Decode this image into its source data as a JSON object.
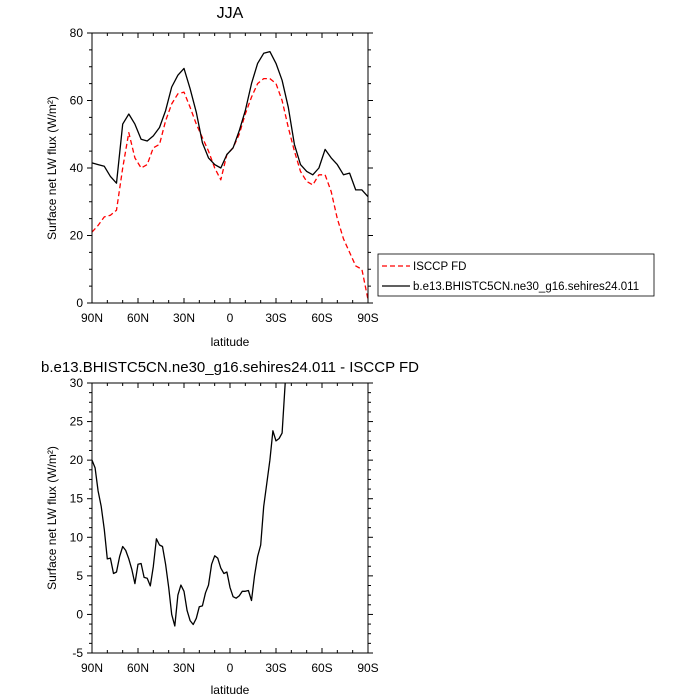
{
  "chart_data": [
    {
      "type": "line",
      "title": "JJA",
      "xlabel": "latitude",
      "ylabel": "Surface net LW flux (W/m²)",
      "xlim": [
        90,
        -90
      ],
      "ylim": [
        0,
        80
      ],
      "xticks": [
        {
          "value": 90,
          "label": "90N"
        },
        {
          "value": 60,
          "label": "60N"
        },
        {
          "value": 30,
          "label": "30N"
        },
        {
          "value": 0,
          "label": "0"
        },
        {
          "value": -30,
          "label": "30S"
        },
        {
          "value": -60,
          "label": "60S"
        },
        {
          "value": -90,
          "label": "90S"
        }
      ],
      "yticks": [
        0,
        20,
        40,
        60,
        80
      ],
      "grid": false,
      "legend_position": "right",
      "series": [
        {
          "name": "ISCCP FD",
          "color": "#ff0000",
          "style": "dashed",
          "points": [
            [
              90,
              21
            ],
            [
              86,
              23
            ],
            [
              82,
              25.5
            ],
            [
              78,
              26
            ],
            [
              74,
              27.5
            ],
            [
              70,
              40
            ],
            [
              66,
              50.5
            ],
            [
              62,
              43
            ],
            [
              58,
              40
            ],
            [
              54,
              41
            ],
            [
              50,
              46
            ],
            [
              46,
              47
            ],
            [
              42,
              54
            ],
            [
              38,
              59
            ],
            [
              34,
              62
            ],
            [
              30,
              62.5
            ],
            [
              26,
              58
            ],
            [
              22,
              53
            ],
            [
              18,
              49
            ],
            [
              14,
              45
            ],
            [
              10,
              40
            ],
            [
              6,
              36.5
            ],
            [
              2,
              44
            ],
            [
              -2,
              46
            ],
            [
              -6,
              50
            ],
            [
              -10,
              56
            ],
            [
              -14,
              61
            ],
            [
              -18,
              65
            ],
            [
              -22,
              66.5
            ],
            [
              -26,
              66.5
            ],
            [
              -30,
              65
            ],
            [
              -34,
              60
            ],
            [
              -38,
              52
            ],
            [
              -42,
              45
            ],
            [
              -46,
              39
            ],
            [
              -50,
              36
            ],
            [
              -54,
              35
            ],
            [
              -58,
              38
            ],
            [
              -62,
              38
            ],
            [
              -66,
              33
            ],
            [
              -70,
              25
            ],
            [
              -74,
              19
            ],
            [
              -78,
              15
            ],
            [
              -82,
              11
            ],
            [
              -86,
              10
            ],
            [
              -90,
              1
            ]
          ]
        },
        {
          "name": "b.e13.BHISTC5CN.ne30_g16.sehires24.011",
          "color": "#000000",
          "style": "solid",
          "points": [
            [
              90,
              41.5
            ],
            [
              86,
              41
            ],
            [
              82,
              40.5
            ],
            [
              78,
              37.5
            ],
            [
              74,
              35.5
            ],
            [
              70,
              53
            ],
            [
              66,
              56
            ],
            [
              62,
              53
            ],
            [
              58,
              48.5
            ],
            [
              54,
              48
            ],
            [
              50,
              49.5
            ],
            [
              46,
              52
            ],
            [
              42,
              57
            ],
            [
              38,
              64
            ],
            [
              34,
              67.5
            ],
            [
              30,
              69.5
            ],
            [
              26,
              63.5
            ],
            [
              22,
              56.5
            ],
            [
              18,
              47.5
            ],
            [
              14,
              43
            ],
            [
              10,
              41
            ],
            [
              6,
              40
            ],
            [
              2,
              44
            ],
            [
              -2,
              46
            ],
            [
              -6,
              51
            ],
            [
              -10,
              57
            ],
            [
              -14,
              65
            ],
            [
              -18,
              71
            ],
            [
              -22,
              74
            ],
            [
              -26,
              74.5
            ],
            [
              -30,
              71
            ],
            [
              -34,
              66
            ],
            [
              -38,
              58
            ],
            [
              -42,
              47
            ],
            [
              -46,
              41
            ],
            [
              -50,
              39
            ],
            [
              -54,
              38
            ],
            [
              -58,
              40
            ],
            [
              -62,
              45.5
            ],
            [
              -66,
              43
            ],
            [
              -70,
              41
            ],
            [
              -74,
              38
            ],
            [
              -78,
              38.5
            ],
            [
              -82,
              33.5
            ],
            [
              -86,
              33.5
            ],
            [
              -90,
              31.5
            ]
          ]
        }
      ]
    },
    {
      "type": "line",
      "title": "b.e13.BHISTC5CN.ne30_g16.sehires24.011 - ISCCP FD",
      "xlabel": "latitude",
      "ylabel": "Surface net LW flux (W/m²)",
      "xlim": [
        90,
        -90
      ],
      "ylim": [
        -5,
        30
      ],
      "xticks": [
        {
          "value": 90,
          "label": "90N"
        },
        {
          "value": 60,
          "label": "60N"
        },
        {
          "value": 30,
          "label": "30N"
        },
        {
          "value": 0,
          "label": "0"
        },
        {
          "value": -30,
          "label": "30S"
        },
        {
          "value": -60,
          "label": "60S"
        },
        {
          "value": -90,
          "label": "90S"
        }
      ],
      "yticks": [
        -5,
        0,
        5,
        10,
        15,
        20,
        25,
        30
      ],
      "grid": false,
      "series": [
        {
          "color": "#000000",
          "style": "solid",
          "points": [
            [
              90,
              20
            ],
            [
              88,
              19
            ],
            [
              86,
              16
            ],
            [
              84,
              14
            ],
            [
              82,
              11
            ],
            [
              80,
              7.2
            ],
            [
              78,
              7.3
            ],
            [
              76,
              5.3
            ],
            [
              74,
              5.5
            ],
            [
              72,
              7.5
            ],
            [
              70,
              8.8
            ],
            [
              68,
              8.3
            ],
            [
              66,
              7.2
            ],
            [
              64,
              5.8
            ],
            [
              62,
              4
            ],
            [
              60,
              6.5
            ],
            [
              58,
              6.6
            ],
            [
              56,
              4.8
            ],
            [
              54,
              4.7
            ],
            [
              52,
              3.7
            ],
            [
              50,
              6.2
            ],
            [
              48,
              9.8
            ],
            [
              46,
              9
            ],
            [
              44,
              8.8
            ],
            [
              42,
              6.5
            ],
            [
              40,
              3.5
            ],
            [
              38,
              0
            ],
            [
              36,
              -1.5
            ],
            [
              34,
              2.5
            ],
            [
              32,
              3.8
            ],
            [
              30,
              3
            ],
            [
              28,
              0.5
            ],
            [
              26,
              -0.8
            ],
            [
              24,
              -1.3
            ],
            [
              22,
              -0.5
            ],
            [
              20,
              1
            ],
            [
              18,
              1.1
            ],
            [
              16,
              2.8
            ],
            [
              14,
              3.8
            ],
            [
              12,
              6.5
            ],
            [
              10,
              7.6
            ],
            [
              8,
              7.3
            ],
            [
              6,
              6
            ],
            [
              4,
              5.3
            ],
            [
              2,
              5.5
            ],
            [
              0,
              3.5
            ],
            [
              -2,
              2.3
            ],
            [
              -4,
              2.1
            ],
            [
              -6,
              2.4
            ],
            [
              -8,
              3
            ],
            [
              -10,
              3
            ],
            [
              -12,
              3.1
            ],
            [
              -14,
              1.8
            ],
            [
              -16,
              5
            ],
            [
              -18,
              7.5
            ],
            [
              -20,
              9
            ],
            [
              -22,
              14
            ],
            [
              -24,
              17
            ],
            [
              -26,
              20
            ],
            [
              -28,
              23.8
            ],
            [
              -30,
              22.5
            ],
            [
              -32,
              22.8
            ],
            [
              -34,
              23.5
            ],
            [
              -36,
              30
            ]
          ]
        }
      ]
    }
  ]
}
